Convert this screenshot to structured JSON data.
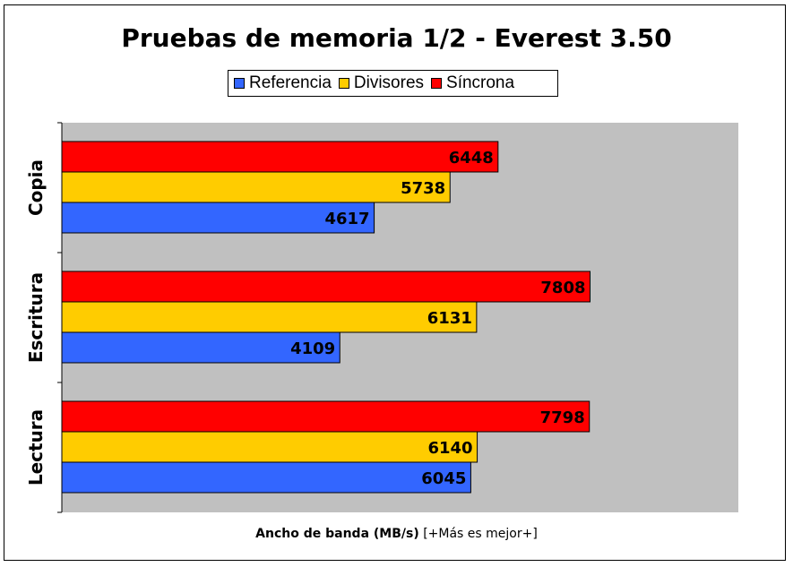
{
  "chart_data": {
    "type": "bar",
    "orientation": "horizontal",
    "title": "Pruebas de memoria 1/2 - Everest 3.50",
    "xlabel_bold": "Ancho de banda (MB/s)",
    "xlabel_rest": " [+Más es mejor+]",
    "categories": [
      "Copia",
      "Escritura",
      "Lectura"
    ],
    "series": [
      {
        "name": "Referencia",
        "color": "#3366ff",
        "values": [
          4617,
          4109,
          6045
        ]
      },
      {
        "name": "Divisores",
        "color": "#ffcc00",
        "values": [
          5738,
          6131,
          6140
        ]
      },
      {
        "name": "Síncrona",
        "color": "#ff0000",
        "values": [
          6448,
          7808,
          7798
        ]
      }
    ],
    "xlim": [
      0,
      10000
    ],
    "legend_position": "top",
    "plot_background": "#c0c0c0",
    "grid": false
  }
}
